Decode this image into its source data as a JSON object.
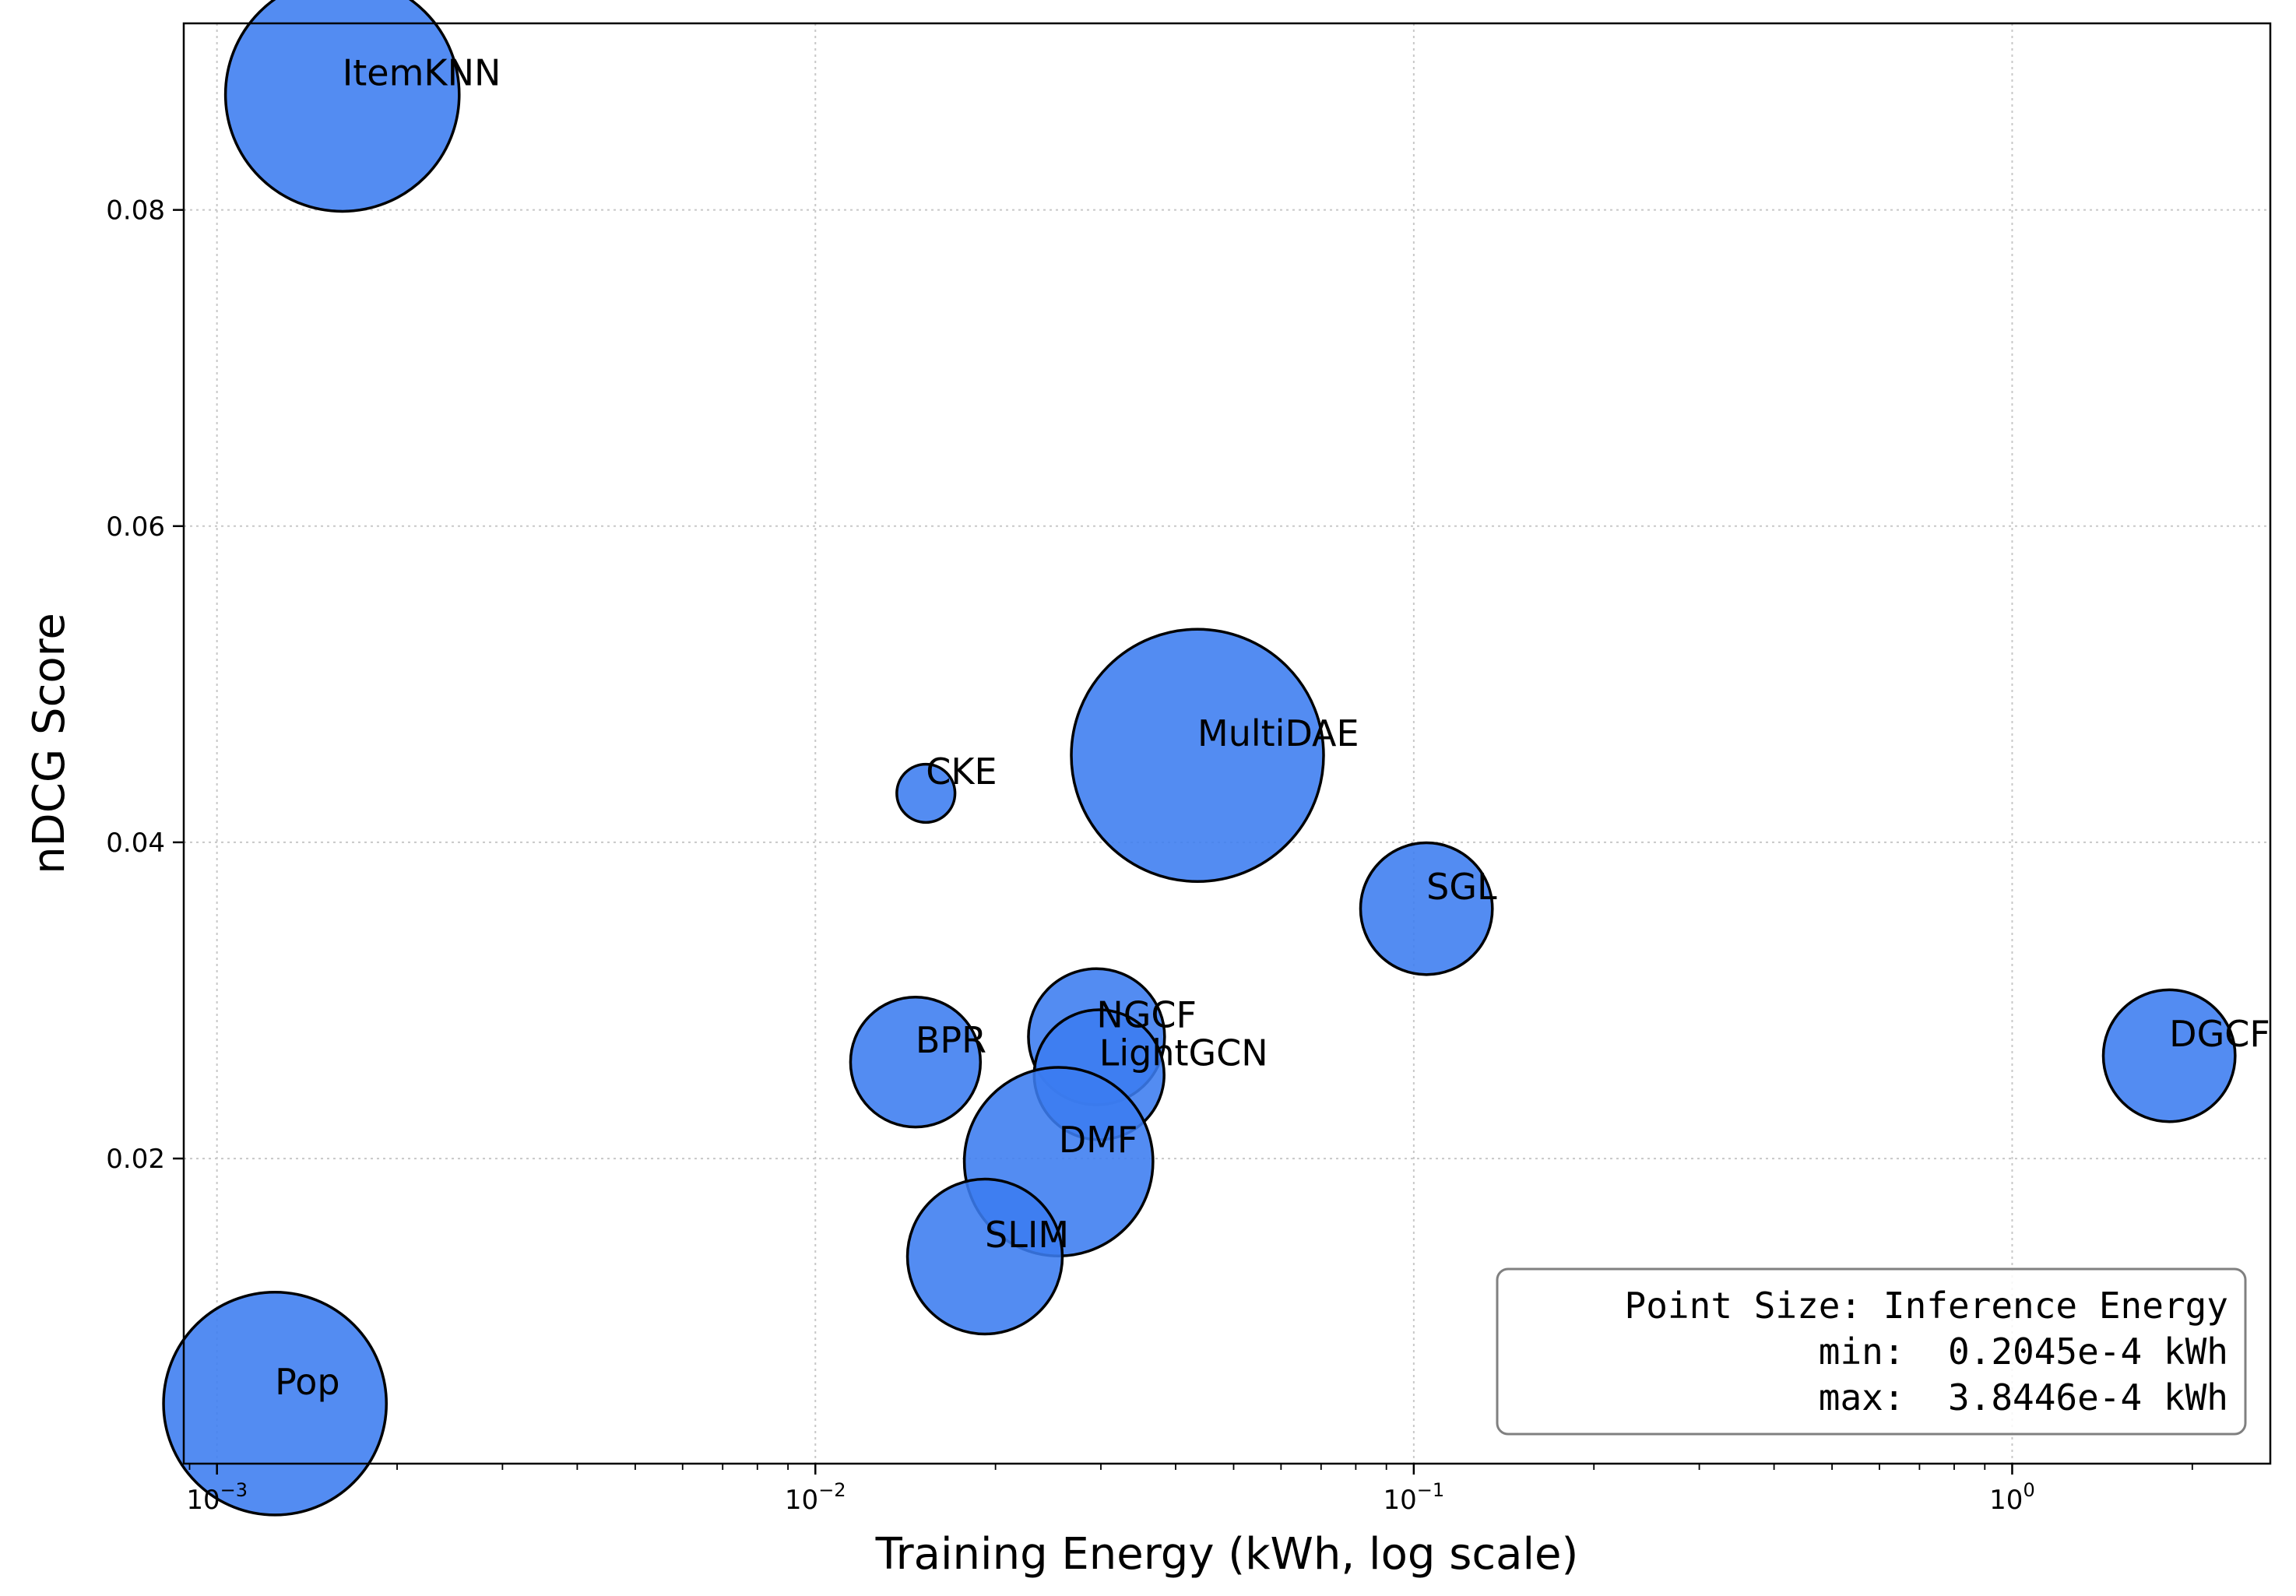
{
  "chart_data": {
    "type": "scatter",
    "title": "",
    "xlabel": "Training Energy (kWh, log scale)",
    "ylabel": "nDCG Score",
    "xscale": "log",
    "xlim": [
      0.00088,
      2.7
    ],
    "ylim": [
      0.0007,
      0.0918
    ],
    "grid": true,
    "color": "#3b7cf0",
    "x_ticks": [
      {
        "base": "10",
        "exp": "−3",
        "value": 0.001
      },
      {
        "base": "10",
        "exp": "−2",
        "value": 0.01
      },
      {
        "base": "10",
        "exp": "−1",
        "value": 0.1
      },
      {
        "base": "10",
        "exp": "0",
        "value": 1
      }
    ],
    "y_ticks": [
      {
        "label": "0.02",
        "value": 0.02
      },
      {
        "label": "0.04",
        "value": 0.04
      },
      {
        "label": "0.06",
        "value": 0.06
      },
      {
        "label": "0.08",
        "value": 0.08
      }
    ],
    "size_encoding": "Inference Energy (e-4 kWh)",
    "points": [
      {
        "name": "ItemKNN",
        "x": 0.00162,
        "y": 0.0873,
        "size": 3.3
      },
      {
        "name": "Pop",
        "x": 0.00125,
        "y": 0.0045,
        "size": 3.0
      },
      {
        "name": "CKE",
        "x": 0.0153,
        "y": 0.0431,
        "size": 0.2045
      },
      {
        "name": "MultiDAE",
        "x": 0.0435,
        "y": 0.0455,
        "size": 3.8446
      },
      {
        "name": "SGL",
        "x": 0.105,
        "y": 0.0358,
        "size": 1.05
      },
      {
        "name": "BPR",
        "x": 0.0147,
        "y": 0.0261,
        "size": 1.02
      },
      {
        "name": "NGCF",
        "x": 0.0295,
        "y": 0.0277,
        "size": 1.12
      },
      {
        "name": "LightGCN",
        "x": 0.0298,
        "y": 0.0253,
        "size": 1.02
      },
      {
        "name": "DMF",
        "x": 0.0255,
        "y": 0.0198,
        "size": 2.15
      },
      {
        "name": "SLIM",
        "x": 0.0192,
        "y": 0.0138,
        "size": 1.45
      },
      {
        "name": "DGCF",
        "x": 1.83,
        "y": 0.0265,
        "size": 1.05
      }
    ],
    "legend": {
      "position": "lower-right",
      "lines": [
        "Point Size: Inference Energy",
        "       min:  0.2045e-4 kWh",
        "       max:  3.8446e-4 kWh"
      ]
    }
  }
}
